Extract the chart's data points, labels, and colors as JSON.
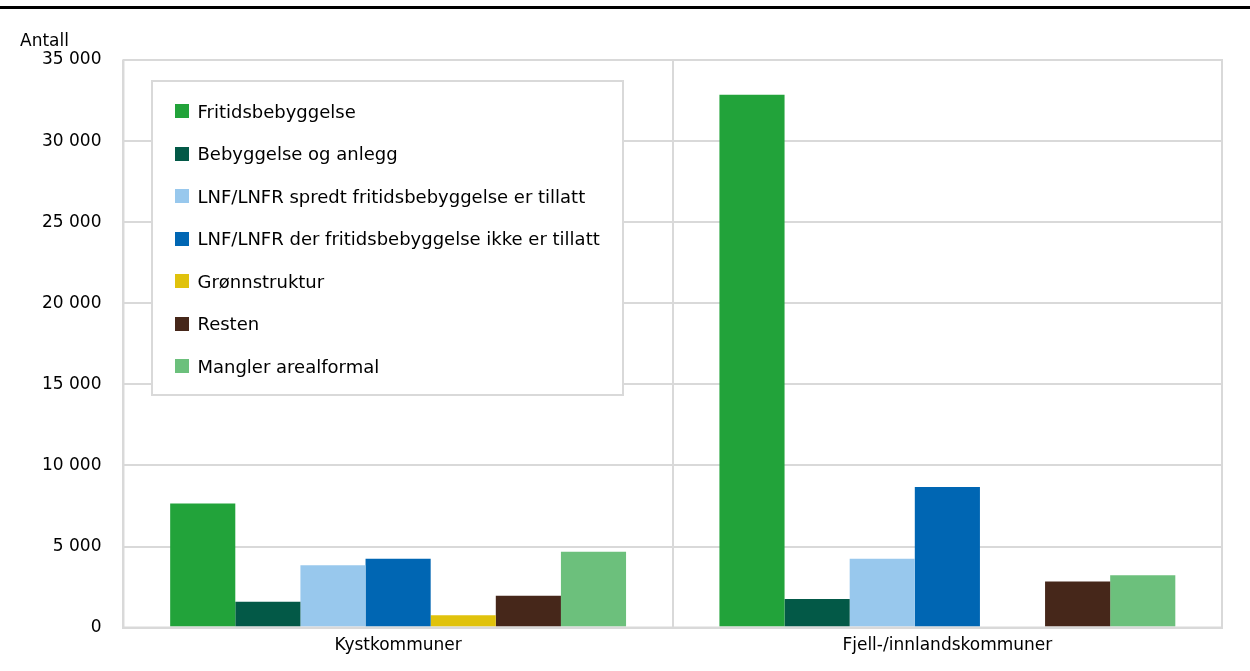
{
  "chart_data": {
    "type": "bar",
    "ylabel": "Antall",
    "categories": [
      "Kystkommuner",
      "Fjell-/innlandskommuner"
    ],
    "series": [
      {
        "name": "Fritidsbebyggelse",
        "color": "#22a33a",
        "values": [
          7650,
          32850
        ]
      },
      {
        "name": "Bebyggelse og anlegg",
        "color": "#035947",
        "values": [
          1600,
          1770
        ]
      },
      {
        "name": "LNF/LNFR spredt fritidsbebyggelse er tillatt",
        "color": "#98c8ed",
        "values": [
          3850,
          4240
        ]
      },
      {
        "name": "LNF/LNFR der fritidsbebyggelse ikke er tillatt",
        "color": "#0066b3",
        "values": [
          4240,
          8670
        ]
      },
      {
        "name": "Grønnstruktur",
        "color": "#e0c20c",
        "values": [
          760,
          0
        ]
      },
      {
        "name": "Resten",
        "color": "#46271a",
        "values": [
          1960,
          2850
        ]
      },
      {
        "name": "Mangler arealformal",
        "color": "#6cc07c",
        "values": [
          4680,
          3230
        ]
      }
    ],
    "ylim": [
      0,
      35000
    ],
    "yticks": [
      {
        "value": 0,
        "label": "0"
      },
      {
        "value": 5000,
        "label": "5 000"
      },
      {
        "value": 10000,
        "label": "10 000"
      },
      {
        "value": 15000,
        "label": "15 000"
      },
      {
        "value": 20000,
        "label": "20 000"
      },
      {
        "value": 25000,
        "label": "25 000"
      },
      {
        "value": 30000,
        "label": "30 000"
      },
      {
        "value": 35000,
        "label": "35 000"
      }
    ],
    "grid": true,
    "legend": "top left"
  }
}
